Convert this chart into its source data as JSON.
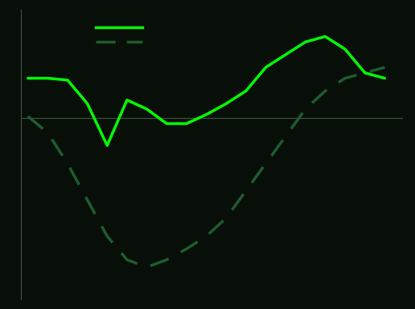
{
  "canada": [
    2.2,
    2.2,
    2.1,
    0.8,
    -1.5,
    1.0,
    0.5,
    -0.3,
    -0.3,
    0.2,
    0.8,
    1.5,
    2.8,
    3.5,
    4.2,
    4.5,
    3.8,
    2.5,
    2.2
  ],
  "us": [
    0.1,
    -0.8,
    -2.5,
    -4.5,
    -6.5,
    -7.8,
    -8.2,
    -7.8,
    -7.2,
    -6.5,
    -5.5,
    -4.0,
    -2.5,
    -1.0,
    0.5,
    1.5,
    2.2,
    2.5,
    2.8
  ],
  "canada_color": "#00ff00",
  "us_color": "#1e5c30",
  "background_color": "#080f08",
  "zero_line_color": "#3a5a3a",
  "spine_color": "#3a5a3a",
  "ylim": [
    -10,
    6
  ],
  "n_points": 19
}
